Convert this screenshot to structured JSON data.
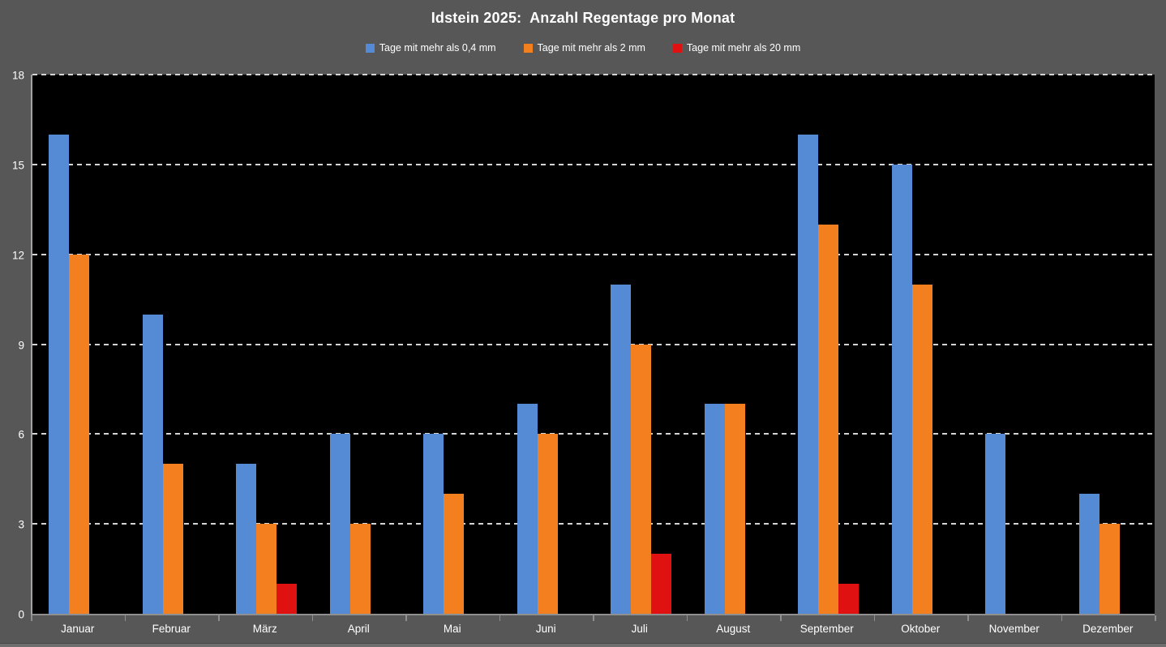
{
  "chart_data": {
    "type": "bar",
    "title": "Idstein 2025:  Anzahl Regentage pro Monat",
    "categories": [
      "Januar",
      "Februar",
      "März",
      "April",
      "Mai",
      "Juni",
      "Juli",
      "August",
      "September",
      "Oktober",
      "November",
      "Dezember"
    ],
    "series": [
      {
        "name": "Tage mit mehr als 0,4 mm",
        "color": "#548BD4",
        "values": [
          16,
          10,
          5,
          6,
          6,
          7,
          11,
          7,
          16,
          15,
          6,
          4
        ]
      },
      {
        "name": "Tage mit mehr als 2 mm",
        "color": "#F47F1F",
        "values": [
          12,
          5,
          3,
          3,
          4,
          6,
          9,
          7,
          13,
          11,
          0,
          3
        ]
      },
      {
        "name": "Tage mit mehr als 20 mm",
        "color": "#E01111",
        "values": [
          0,
          0,
          1,
          0,
          0,
          0,
          2,
          0,
          1,
          0,
          0,
          0
        ]
      }
    ],
    "y_ticks": [
      0,
      3,
      6,
      9,
      12,
      15,
      18
    ],
    "ylim": [
      0,
      18
    ],
    "xlabel": "",
    "ylabel": "",
    "grid": "horizontal-dashed",
    "legend_position": "top",
    "colors": {
      "background": "#575757",
      "plot_background": "#000000",
      "gridline": "#d4d4d4",
      "axis_line": "#8f8f8f",
      "text": "#ffffff"
    }
  }
}
